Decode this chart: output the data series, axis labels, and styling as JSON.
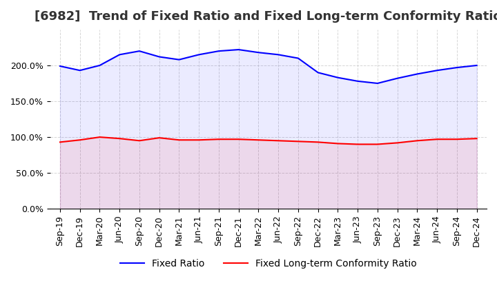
{
  "title": "[6982]  Trend of Fixed Ratio and Fixed Long-term Conformity Ratio",
  "x_labels": [
    "Sep-19",
    "Dec-19",
    "Mar-20",
    "Jun-20",
    "Sep-20",
    "Dec-20",
    "Mar-21",
    "Jun-21",
    "Sep-21",
    "Dec-21",
    "Mar-22",
    "Jun-22",
    "Sep-22",
    "Dec-22",
    "Mar-23",
    "Jun-23",
    "Sep-23",
    "Dec-23",
    "Mar-24",
    "Jun-24",
    "Sep-24",
    "Dec-24"
  ],
  "fixed_ratio": [
    199.0,
    193.0,
    200.0,
    215.0,
    220.0,
    212.0,
    208.0,
    215.0,
    220.0,
    222.0,
    218.0,
    215.0,
    210.0,
    190.0,
    183.0,
    178.0,
    175.0,
    182.0,
    188.0,
    193.0,
    197.0,
    200.0
  ],
  "fixed_lt_ratio": [
    93.0,
    96.0,
    100.0,
    98.0,
    95.0,
    99.0,
    96.0,
    96.0,
    97.0,
    97.0,
    96.0,
    95.0,
    94.0,
    93.0,
    91.0,
    90.0,
    90.0,
    92.0,
    95.0,
    97.0,
    97.0,
    98.0
  ],
  "ylim": [
    0,
    250
  ],
  "fixed_ratio_color": "#0000FF",
  "fixed_lt_ratio_color": "#FF0000",
  "grid_color": "#cccccc",
  "background_color": "#ffffff",
  "title_fontsize": 13,
  "tick_fontsize": 9,
  "legend_fontsize": 10
}
